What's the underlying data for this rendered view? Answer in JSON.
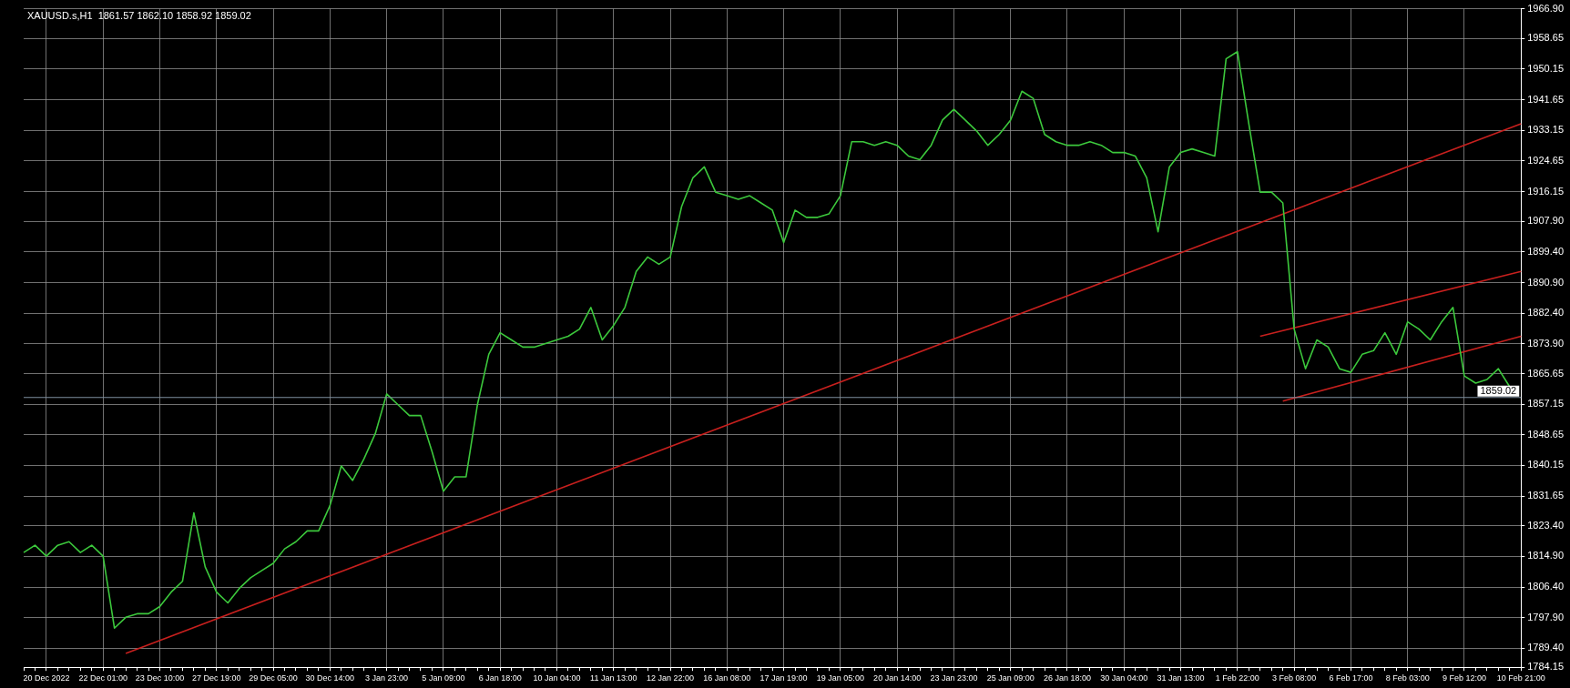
{
  "chart_data": {
    "type": "line",
    "title": "XAUUSD.s,H1  1861.57 1862.10 1858.92 1859.02",
    "categories": [
      null,
      null,
      "20 Dec 2022",
      null,
      null,
      null,
      null,
      "22 Dec 01:00",
      null,
      null,
      null,
      null,
      "23 Dec 10:00",
      null,
      null,
      null,
      null,
      "27 Dec 19:00",
      null,
      null,
      null,
      null,
      "29 Dec 05:00",
      null,
      null,
      null,
      null,
      "30 Dec 14:00",
      null,
      null,
      null,
      null,
      "3 Jan 23:00",
      null,
      null,
      null,
      null,
      "5 Jan 09:00",
      null,
      null,
      null,
      null,
      "6 Jan 18:00",
      null,
      null,
      null,
      null,
      "10 Jan 04:00",
      null,
      null,
      null,
      null,
      "11 Jan 13:00",
      null,
      null,
      null,
      null,
      "12 Jan 22:00",
      null,
      null,
      null,
      null,
      "16 Jan 08:00",
      null,
      null,
      null,
      null,
      "17 Jan 19:00",
      null,
      null,
      null,
      null,
      "19 Jan 05:00",
      null,
      null,
      null,
      null,
      "20 Jan 14:00",
      null,
      null,
      null,
      null,
      "23 Jan 23:00",
      null,
      null,
      null,
      null,
      "25 Jan 09:00",
      null,
      null,
      null,
      null,
      "26 Jan 18:00",
      null,
      null,
      null,
      null,
      "30 Jan 04:00",
      null,
      null,
      null,
      null,
      "31 Jan 13:00",
      null,
      null,
      null,
      null,
      "1 Feb 22:00",
      null,
      null,
      null,
      null,
      "3 Feb 08:00",
      null,
      null,
      null,
      null,
      "6 Feb 17:00",
      null,
      null,
      null,
      null,
      "8 Feb 03:00",
      null,
      null,
      null,
      null,
      "9 Feb 12:00",
      null,
      null,
      null,
      null,
      "10 Feb 21:00"
    ],
    "series": [
      {
        "color": "#3cc83c",
        "values": [
          1816,
          1818,
          1815,
          1818,
          1819,
          1816,
          1818,
          1815,
          1795,
          1798,
          1799,
          1799,
          1801,
          1805,
          1808,
          1827,
          1812,
          1805,
          1802,
          1806,
          1809,
          1811,
          1813,
          1817,
          1819,
          1822,
          1822,
          1829,
          1840,
          1836,
          1842,
          1849,
          1860,
          1857,
          1854,
          1854,
          1844,
          1833,
          1837,
          1837,
          1857,
          1871,
          1877,
          1875,
          1873,
          1873,
          1874,
          1875,
          1876,
          1878,
          1884,
          1875,
          1879,
          1884,
          1894,
          1898,
          1896,
          1898,
          1912,
          1920,
          1923,
          1916,
          1915,
          1914,
          1915,
          1913,
          1911,
          1902,
          1911,
          1909,
          1909,
          1910,
          1915,
          1930,
          1930,
          1929,
          1930,
          1929,
          1926,
          1925,
          1929,
          1936,
          1939,
          1936,
          1933,
          1929,
          1932,
          1936,
          1944,
          1942,
          1932,
          1930,
          1929,
          1929,
          1930,
          1929,
          1927,
          1927,
          1926,
          1920,
          1905,
          1923,
          1927,
          1928,
          1927,
          1926,
          1953,
          1955,
          1935,
          1916,
          1916,
          1913,
          1878,
          1867,
          1875,
          1873,
          1867,
          1866,
          1871,
          1872,
          1877,
          1871,
          1880,
          1878,
          1875,
          1880,
          1884,
          1865,
          1863,
          1864,
          1867,
          1862,
          null
        ]
      },
      {
        "type": "line",
        "color": "#c8201e",
        "values": [
          null,
          null,
          null,
          null,
          null,
          null,
          null,
          null,
          null,
          1788,
          null,
          null,
          null,
          null,
          null,
          null,
          null,
          null,
          null,
          null,
          null,
          null,
          null,
          null,
          null,
          null,
          null,
          null,
          null,
          null,
          null,
          null,
          null,
          null,
          null,
          null,
          null,
          null,
          null,
          null,
          null,
          null,
          null,
          null,
          null,
          null,
          null,
          null,
          null,
          null,
          null,
          null,
          null,
          null,
          null,
          null,
          null,
          null,
          null,
          null,
          null,
          null,
          null,
          null,
          null,
          null,
          null,
          null,
          null,
          null,
          null,
          null,
          null,
          null,
          null,
          null,
          null,
          null,
          null,
          null,
          null,
          null,
          null,
          null,
          null,
          null,
          null,
          null,
          null,
          null,
          null,
          null,
          null,
          null,
          null,
          null,
          null,
          null,
          null,
          null,
          null,
          null,
          null,
          null,
          null,
          null,
          null,
          null,
          null,
          null,
          null,
          null,
          null,
          null,
          null,
          null,
          null,
          null,
          null,
          null,
          null,
          null,
          null,
          null,
          null,
          null,
          null,
          null,
          null,
          null,
          null,
          null,
          1935
        ]
      },
      {
        "type": "line",
        "color": "#c8201e",
        "values": [
          null,
          null,
          null,
          null,
          null,
          null,
          null,
          null,
          null,
          null,
          null,
          null,
          null,
          null,
          null,
          null,
          null,
          null,
          null,
          null,
          null,
          null,
          null,
          null,
          null,
          null,
          null,
          null,
          null,
          null,
          null,
          null,
          null,
          null,
          null,
          null,
          null,
          null,
          null,
          null,
          null,
          null,
          null,
          null,
          null,
          null,
          null,
          null,
          null,
          null,
          null,
          null,
          null,
          null,
          null,
          null,
          null,
          null,
          null,
          null,
          null,
          null,
          null,
          null,
          null,
          null,
          null,
          null,
          null,
          null,
          null,
          null,
          null,
          null,
          null,
          null,
          null,
          null,
          null,
          null,
          null,
          null,
          null,
          null,
          null,
          null,
          null,
          null,
          null,
          null,
          null,
          null,
          null,
          null,
          null,
          null,
          null,
          null,
          null,
          null,
          null,
          null,
          null,
          null,
          null,
          null,
          null,
          null,
          null,
          1876,
          null,
          null,
          null,
          null,
          null,
          null,
          null,
          null,
          null,
          null,
          null,
          null,
          null,
          null,
          null,
          null,
          null,
          null,
          null,
          null,
          null,
          null,
          1894
        ]
      },
      {
        "type": "line",
        "color": "#c8201e",
        "values": [
          null,
          null,
          null,
          null,
          null,
          null,
          null,
          null,
          null,
          null,
          null,
          null,
          null,
          null,
          null,
          null,
          null,
          null,
          null,
          null,
          null,
          null,
          null,
          null,
          null,
          null,
          null,
          null,
          null,
          null,
          null,
          null,
          null,
          null,
          null,
          null,
          null,
          null,
          null,
          null,
          null,
          null,
          null,
          null,
          null,
          null,
          null,
          null,
          null,
          null,
          null,
          null,
          null,
          null,
          null,
          null,
          null,
          null,
          null,
          null,
          null,
          null,
          null,
          null,
          null,
          null,
          null,
          null,
          null,
          null,
          null,
          null,
          null,
          null,
          null,
          null,
          null,
          null,
          null,
          null,
          null,
          null,
          null,
          null,
          null,
          null,
          null,
          null,
          null,
          null,
          null,
          null,
          null,
          null,
          null,
          null,
          null,
          null,
          null,
          null,
          null,
          null,
          null,
          null,
          null,
          null,
          null,
          null,
          null,
          null,
          null,
          1858,
          null,
          null,
          null,
          null,
          null,
          null,
          null,
          null,
          null,
          null,
          null,
          null,
          null,
          null,
          null,
          null,
          null,
          null,
          null,
          null,
          1876
        ]
      }
    ],
    "ylim": [
      1784.15,
      1966.9
    ],
    "yticks": [
      {
        "value": 1784.15,
        "label": "1784.15"
      },
      {
        "value": 1789.4,
        "label": "1789.40"
      },
      {
        "value": 1797.9,
        "label": "1797.90"
      },
      {
        "value": 1806.4,
        "label": "1806.40"
      },
      {
        "value": 1814.9,
        "label": "1814.90"
      },
      {
        "value": 1823.4,
        "label": "1823.40"
      },
      {
        "value": 1831.65,
        "label": "1831.65"
      },
      {
        "value": 1840.15,
        "label": "1840.15"
      },
      {
        "value": 1848.65,
        "label": "1848.65"
      },
      {
        "value": 1857.15,
        "label": "1857.15"
      },
      {
        "value": 1865.65,
        "label": "1865.65"
      },
      {
        "value": 1873.9,
        "label": "1873.90"
      },
      {
        "value": 1882.4,
        "label": "1882.40"
      },
      {
        "value": 1890.9,
        "label": "1890.90"
      },
      {
        "value": 1899.4,
        "label": "1899.40"
      },
      {
        "value": 1907.9,
        "label": "1907.90"
      },
      {
        "value": 1916.15,
        "label": "1916.15"
      },
      {
        "value": 1924.65,
        "label": "1924.65"
      },
      {
        "value": 1933.15,
        "label": "1933.15"
      },
      {
        "value": 1941.65,
        "label": "1941.65"
      },
      {
        "value": 1950.15,
        "label": "1950.15"
      },
      {
        "value": 1958.65,
        "label": "1958.65"
      },
      {
        "value": 1966.9,
        "label": "1966.90"
      }
    ],
    "ref_lines": [
      {
        "axis": "y",
        "value": 1859.02,
        "label": "1859.02",
        "color": "#7f8fa0"
      }
    ],
    "grid": true,
    "legend": false,
    "marker": "none",
    "line_style": "solid"
  }
}
